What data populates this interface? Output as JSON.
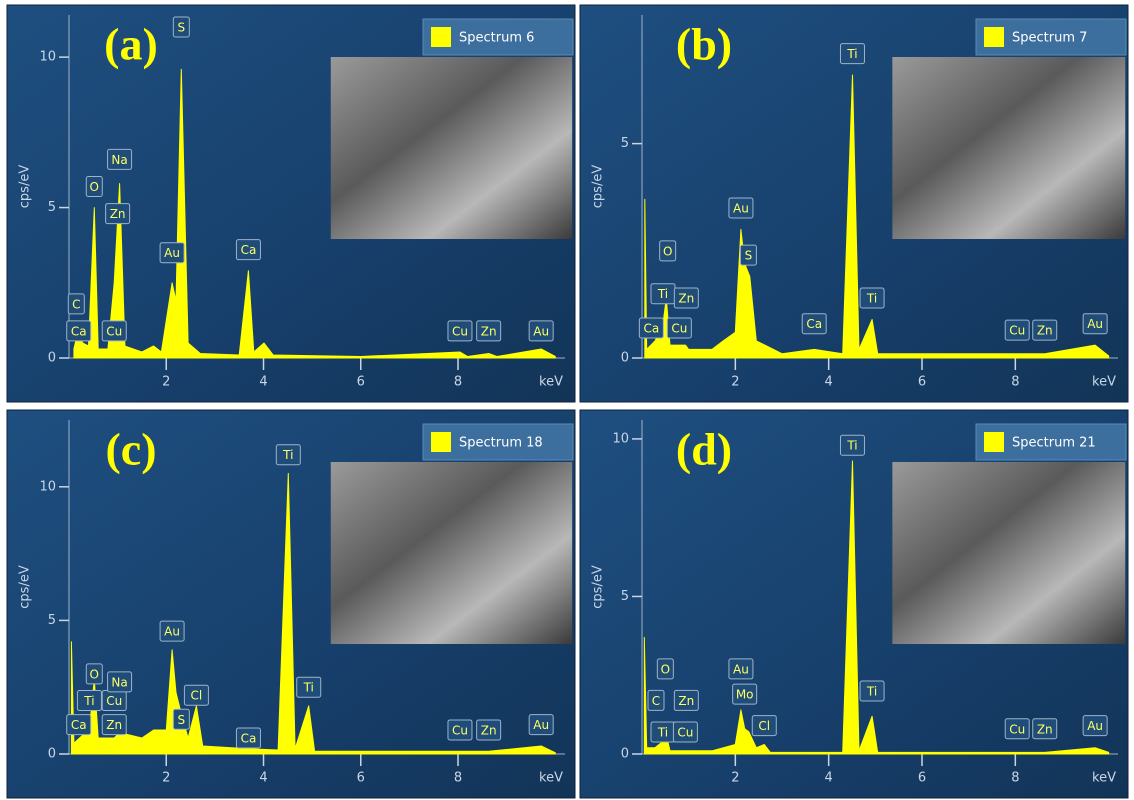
{
  "chart_data": [
    {
      "type": "area",
      "panel_label": "(a)",
      "x_label": "keV",
      "y_label": "cps/eV",
      "x": [
        0.1,
        0.2,
        0.28,
        0.4,
        0.52,
        0.6,
        0.8,
        0.93,
        1.04,
        1.15,
        1.5,
        1.74,
        1.9,
        2.12,
        2.2,
        2.31,
        2.45,
        2.7,
        3.5,
        3.69,
        3.8,
        4.01,
        4.2,
        6,
        8.04,
        8.2,
        8.63,
        8.8,
        9.71,
        10
      ],
      "series": [
        {
          "name": "Spectrum 6",
          "color": "#ffff00",
          "values": [
            0.3,
            1.0,
            0.5,
            0.4,
            5.0,
            0.3,
            0.3,
            2.5,
            5.8,
            0.4,
            0.2,
            0.4,
            0.2,
            2.5,
            1.9,
            9.6,
            0.5,
            0.15,
            0.1,
            2.9,
            0.2,
            0.5,
            0.1,
            0.05,
            0.2,
            0.05,
            0.15,
            0.05,
            0.3,
            0.05
          ]
        }
      ],
      "xlim": [
        0,
        10.2
      ],
      "ylim": [
        0,
        11.4
      ],
      "xticks": [
        2,
        4,
        6,
        8
      ],
      "yticks": [
        0,
        5,
        10
      ],
      "annotations": [
        {
          "text": "C",
          "x": 0.15,
          "y": 1.8
        },
        {
          "text": "Ca",
          "x": 0.2,
          "y": 0.9
        },
        {
          "text": "O",
          "x": 0.52,
          "y": 5.7
        },
        {
          "text": "Cu",
          "x": 0.93,
          "y": 0.9
        },
        {
          "text": "Zn",
          "x": 1.0,
          "y": 4.8
        },
        {
          "text": "Na",
          "x": 1.04,
          "y": 6.6
        },
        {
          "text": "Au",
          "x": 2.12,
          "y": 3.5
        },
        {
          "text": "S",
          "x": 2.31,
          "y": 11.0
        },
        {
          "text": "Ca",
          "x": 3.69,
          "y": 3.6
        },
        {
          "text": "Cu",
          "x": 8.04,
          "y": 0.9
        },
        {
          "text": "Zn",
          "x": 8.63,
          "y": 0.9
        },
        {
          "text": "Au",
          "x": 9.71,
          "y": 0.9
        }
      ]
    },
    {
      "type": "area",
      "panel_label": "(b)",
      "x_label": "keV",
      "y_label": "cps/eV",
      "x": [
        0.06,
        0.1,
        0.28,
        0.45,
        0.52,
        0.6,
        0.93,
        1.0,
        1.5,
        1.74,
        2.0,
        2.12,
        2.2,
        2.31,
        2.45,
        3.0,
        3.69,
        4.3,
        4.51,
        4.65,
        4.93,
        5.05,
        8.04,
        8.63,
        9.71,
        10
      ],
      "series": [
        {
          "name": "Spectrum 7",
          "color": "#ffff00",
          "values": [
            3.7,
            0.2,
            0.4,
            0.8,
            1.4,
            0.3,
            0.3,
            0.2,
            0.2,
            0.4,
            0.6,
            3.0,
            2.2,
            1.9,
            0.4,
            0.1,
            0.2,
            0.1,
            6.6,
            0.2,
            0.9,
            0.1,
            0.1,
            0.1,
            0.3,
            0.05
          ]
        }
      ],
      "xlim": [
        0,
        10.2
      ],
      "ylim": [
        0,
        8
      ],
      "xticks": [
        2,
        4,
        6,
        8
      ],
      "yticks": [
        0,
        5
      ],
      "annotations": [
        {
          "text": "O",
          "x": 0.55,
          "y": 2.5
        },
        {
          "text": "Ti",
          "x": 0.45,
          "y": 1.5
        },
        {
          "text": "Zn",
          "x": 0.95,
          "y": 1.4
        },
        {
          "text": "Ca",
          "x": 0.2,
          "y": 0.7
        },
        {
          "text": "Cu",
          "x": 0.8,
          "y": 0.7
        },
        {
          "text": "Au",
          "x": 2.12,
          "y": 3.5
        },
        {
          "text": "S",
          "x": 2.28,
          "y": 2.4
        },
        {
          "text": "Ca",
          "x": 3.69,
          "y": 0.8
        },
        {
          "text": "Ti",
          "x": 4.51,
          "y": 7.1
        },
        {
          "text": "Ti",
          "x": 4.93,
          "y": 1.4
        },
        {
          "text": "Cu",
          "x": 8.04,
          "y": 0.65
        },
        {
          "text": "Zn",
          "x": 8.63,
          "y": 0.65
        },
        {
          "text": "Au",
          "x": 9.71,
          "y": 0.8
        }
      ]
    },
    {
      "type": "area",
      "panel_label": "(c)",
      "x_label": "keV",
      "y_label": "cps/eV",
      "x": [
        0.05,
        0.1,
        0.28,
        0.45,
        0.52,
        0.6,
        0.93,
        1.04,
        1.5,
        1.74,
        2.0,
        2.12,
        2.2,
        2.31,
        2.45,
        2.62,
        2.75,
        3.69,
        4.3,
        4.51,
        4.65,
        4.93,
        5.05,
        8.04,
        8.63,
        9.71,
        10
      ],
      "series": [
        {
          "name": "Spectrum 18",
          "color": "#ffff00",
          "values": [
            4.2,
            0.4,
            0.7,
            1.5,
            2.8,
            0.6,
            0.6,
            0.8,
            0.6,
            0.9,
            0.9,
            3.9,
            2.3,
            1.5,
            0.6,
            1.8,
            0.3,
            0.2,
            0.15,
            10.5,
            0.2,
            1.8,
            0.1,
            0.1,
            0.1,
            0.3,
            0.05
          ]
        }
      ],
      "xlim": [
        0,
        10.2
      ],
      "ylim": [
        0,
        12.5
      ],
      "xticks": [
        2,
        4,
        6,
        8
      ],
      "yticks": [
        0,
        5,
        10
      ],
      "annotations": [
        {
          "text": "Ca",
          "x": 0.2,
          "y": 1.1
        },
        {
          "text": "Ti",
          "x": 0.42,
          "y": 2.0
        },
        {
          "text": "O",
          "x": 0.52,
          "y": 3.0
        },
        {
          "text": "Cu",
          "x": 0.93,
          "y": 2.0
        },
        {
          "text": "Na",
          "x": 1.04,
          "y": 2.7
        },
        {
          "text": "Zn",
          "x": 0.93,
          "y": 1.1
        },
        {
          "text": "Au",
          "x": 2.12,
          "y": 4.6
        },
        {
          "text": "S",
          "x": 2.31,
          "y": 1.3
        },
        {
          "text": "Cl",
          "x": 2.62,
          "y": 2.2
        },
        {
          "text": "Ca",
          "x": 3.69,
          "y": 0.6
        },
        {
          "text": "Ti",
          "x": 4.51,
          "y": 11.2
        },
        {
          "text": "Ti",
          "x": 4.93,
          "y": 2.5
        },
        {
          "text": "Cu",
          "x": 8.04,
          "y": 0.9
        },
        {
          "text": "Zn",
          "x": 8.63,
          "y": 0.9
        },
        {
          "text": "Au",
          "x": 9.71,
          "y": 1.1
        }
      ]
    },
    {
      "type": "area",
      "panel_label": "(d)",
      "x_label": "keV",
      "y_label": "cps/eV",
      "x": [
        0.05,
        0.1,
        0.28,
        0.45,
        0.52,
        0.6,
        0.93,
        1.5,
        2.0,
        2.12,
        2.2,
        2.29,
        2.45,
        2.62,
        2.75,
        4.3,
        4.51,
        4.65,
        4.93,
        5.05,
        8.04,
        8.63,
        9.71,
        10
      ],
      "series": [
        {
          "name": "Spectrum 21",
          "color": "#ffff00",
          "values": [
            3.7,
            0.2,
            0.2,
            0.4,
            0.6,
            0.1,
            0.1,
            0.1,
            0.3,
            1.4,
            0.8,
            0.7,
            0.2,
            0.3,
            0.05,
            0.05,
            9.3,
            0.1,
            1.2,
            0.05,
            0.05,
            0.05,
            0.2,
            0.05
          ]
        }
      ],
      "xlim": [
        0,
        10.2
      ],
      "ylim": [
        0,
        10.6
      ],
      "xticks": [
        2,
        4,
        6,
        8
      ],
      "yticks": [
        0,
        5,
        10
      ],
      "annotations": [
        {
          "text": "C",
          "x": 0.3,
          "y": 1.7
        },
        {
          "text": "O",
          "x": 0.5,
          "y": 2.7
        },
        {
          "text": "Ti",
          "x": 0.45,
          "y": 0.7
        },
        {
          "text": "Zn",
          "x": 0.95,
          "y": 1.7
        },
        {
          "text": "Cu",
          "x": 0.93,
          "y": 0.7
        },
        {
          "text": "Au",
          "x": 2.12,
          "y": 2.7
        },
        {
          "text": "Mo",
          "x": 2.2,
          "y": 1.9
        },
        {
          "text": "Cl",
          "x": 2.62,
          "y": 0.9
        },
        {
          "text": "Ti",
          "x": 4.51,
          "y": 9.8
        },
        {
          "text": "Ti",
          "x": 4.93,
          "y": 2.0
        },
        {
          "text": "Cu",
          "x": 8.04,
          "y": 0.8
        },
        {
          "text": "Zn",
          "x": 8.63,
          "y": 0.8
        },
        {
          "text": "Au",
          "x": 9.71,
          "y": 0.9
        }
      ]
    }
  ]
}
